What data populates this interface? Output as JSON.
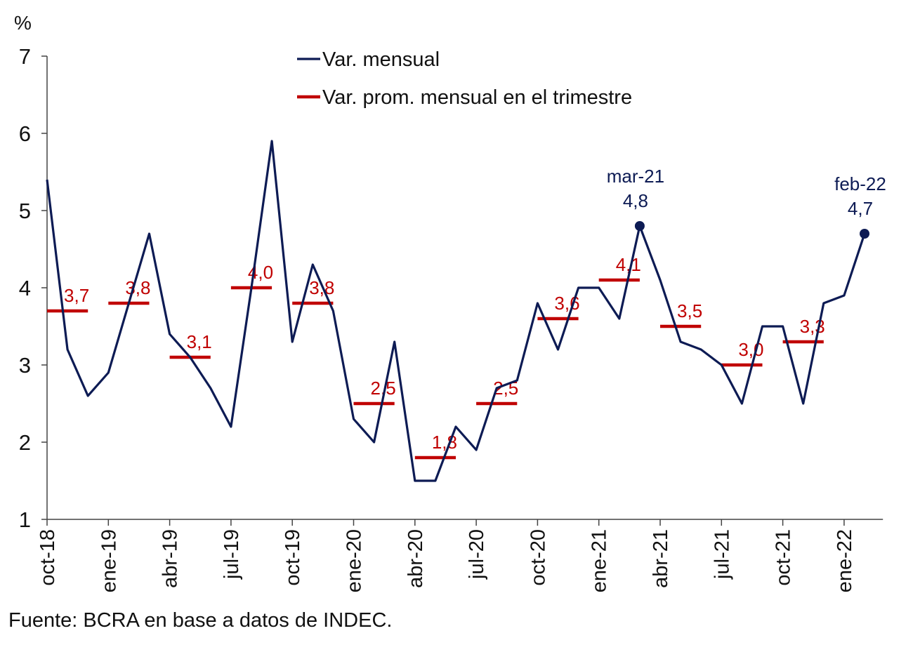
{
  "chart_data": {
    "type": "line",
    "y_unit_label": "%",
    "ylim": [
      1,
      7
    ],
    "y_ticks": [
      "1",
      "2",
      "3",
      "4",
      "5",
      "6",
      "7"
    ],
    "x_tick_labels": [
      "oct-18",
      "ene-19",
      "abr-19",
      "jul-19",
      "oct-19",
      "ene-20",
      "abr-20",
      "jul-20",
      "oct-20",
      "ene-21",
      "abr-21",
      "jul-21",
      "oct-21",
      "ene-22"
    ],
    "grid": false,
    "legend_placement": "top-center",
    "series": [
      {
        "name": "Var. mensual",
        "color": "#0d1b54",
        "x": [
          "oct-18",
          "nov-18",
          "dic-18",
          "ene-19",
          "feb-19",
          "mar-19",
          "abr-19",
          "may-19",
          "jun-19",
          "jul-19",
          "ago-19",
          "sep-19",
          "oct-19",
          "nov-19",
          "dic-19",
          "ene-20",
          "feb-20",
          "mar-20",
          "abr-20",
          "may-20",
          "jun-20",
          "jul-20",
          "ago-20",
          "sep-20",
          "oct-20",
          "nov-20",
          "dic-20",
          "ene-21",
          "feb-21",
          "mar-21",
          "abr-21",
          "may-21",
          "jun-21",
          "jul-21",
          "ago-21",
          "sep-21",
          "oct-21",
          "nov-21",
          "dic-21",
          "ene-22",
          "feb-22"
        ],
        "values": [
          5.4,
          3.2,
          2.6,
          2.9,
          3.8,
          4.7,
          3.4,
          3.1,
          2.7,
          2.2,
          4.0,
          5.9,
          3.3,
          4.3,
          3.7,
          2.3,
          2.0,
          3.3,
          1.5,
          1.5,
          2.2,
          1.9,
          2.7,
          2.8,
          3.8,
          3.2,
          4.0,
          4.0,
          3.6,
          4.8,
          4.1,
          3.3,
          3.2,
          3.0,
          2.5,
          3.5,
          3.5,
          2.5,
          3.8,
          3.9,
          4.7
        ]
      },
      {
        "name": "Var. prom. mensual en el trimestre",
        "color": "#c00000",
        "quarters": [
          {
            "start": "oct-18",
            "value": 3.7,
            "label": "3,7"
          },
          {
            "start": "ene-19",
            "value": 3.8,
            "label": "3,8"
          },
          {
            "start": "abr-19",
            "value": 3.1,
            "label": "3,1"
          },
          {
            "start": "jul-19",
            "value": 4.0,
            "label": "4,0"
          },
          {
            "start": "oct-19",
            "value": 3.8,
            "label": "3,8"
          },
          {
            "start": "ene-20",
            "value": 2.5,
            "label": "2,5"
          },
          {
            "start": "abr-20",
            "value": 1.8,
            "label": "1,8"
          },
          {
            "start": "jul-20",
            "value": 2.5,
            "label": "2,5"
          },
          {
            "start": "oct-20",
            "value": 3.6,
            "label": "3,6"
          },
          {
            "start": "ene-21",
            "value": 4.1,
            "label": "4,1"
          },
          {
            "start": "abr-21",
            "value": 3.5,
            "label": "3,5"
          },
          {
            "start": "jul-21",
            "value": 3.0,
            "label": "3,0"
          },
          {
            "start": "oct-21",
            "value": 3.3,
            "label": "3,3"
          }
        ]
      }
    ],
    "annotations": [
      {
        "x": "mar-21",
        "value": 4.8,
        "date_label": "mar-21",
        "value_label": "4,8"
      },
      {
        "x": "feb-22",
        "value": 4.7,
        "date_label": "feb-22",
        "value_label": "4,7"
      }
    ]
  },
  "source": "Fuente: BCRA en base a datos de INDEC."
}
